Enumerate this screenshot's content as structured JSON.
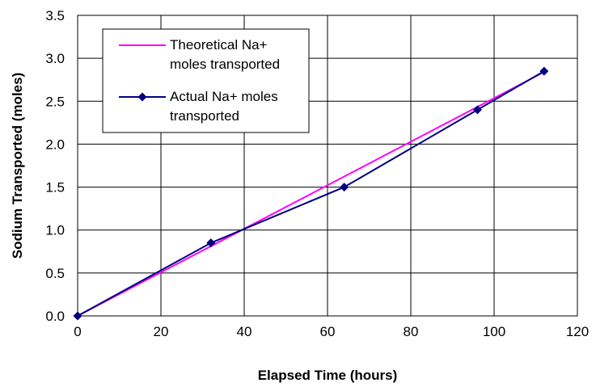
{
  "chart_data": {
    "type": "scatter",
    "title": "",
    "xlabel": "Elapsed Time (hours)",
    "ylabel": "Sodium Transported (moles)",
    "xlim": [
      0,
      120
    ],
    "ylim": [
      0,
      3.5
    ],
    "xticks": [
      "0",
      "20",
      "40",
      "60",
      "80",
      "100",
      "120"
    ],
    "yticks": [
      "0.0",
      "0.5",
      "1.0",
      "1.5",
      "2.0",
      "2.5",
      "3.0",
      "3.5"
    ],
    "grid": true,
    "legend_position": "top-left",
    "series": [
      {
        "name": "Theoretical Na+ moles transported",
        "legend_lines": [
          "Theoretical Na+",
          "moles transported"
        ],
        "kind": "line",
        "color": "#ff00ff",
        "x": [
          0,
          112
        ],
        "y": [
          0,
          2.84
        ]
      },
      {
        "name": "Actual Na+ moles transported",
        "legend_lines": [
          "Actual Na+ moles",
          "transported"
        ],
        "kind": "line-markers",
        "marker": "diamond",
        "color": "#000080",
        "x": [
          0,
          32,
          64,
          96,
          112
        ],
        "y": [
          0,
          0.85,
          1.5,
          2.4,
          2.85
        ]
      }
    ]
  }
}
